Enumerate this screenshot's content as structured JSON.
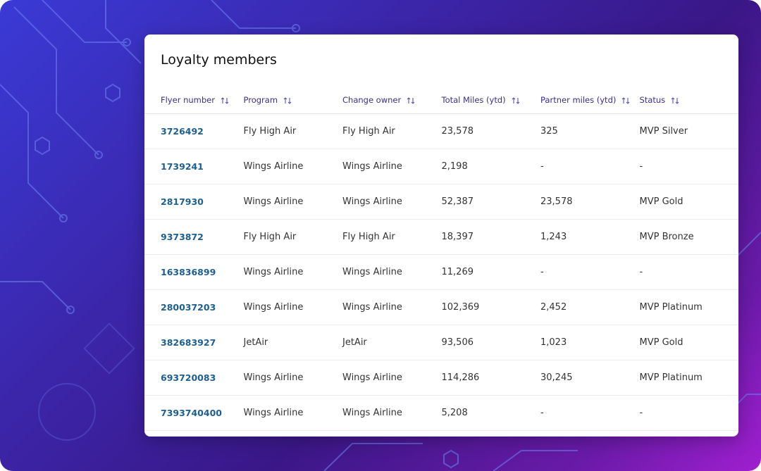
{
  "title": "Loyalty members",
  "table": {
    "headers": [
      "Flyer number",
      "Program",
      "Change owner",
      "Total Miles (ytd)",
      "Partner miles (ytd)",
      "Status"
    ],
    "rows": [
      [
        "3726492",
        "Fly High Air",
        "Fly High Air",
        "23,578",
        "325",
        "MVP Silver"
      ],
      [
        "1739241",
        "Wings Airline",
        "Wings Airline",
        "2,198",
        "-",
        "-"
      ],
      [
        "2817930",
        "Wings Airline",
        "Wings Airline",
        "52,387",
        "23,578",
        "MVP Gold"
      ],
      [
        "9373872",
        "Fly High Air",
        "Fly High Air",
        "18,397",
        "1,243",
        "MVP Bronze"
      ],
      [
        "163836899",
        "Wings Airline",
        "Wings Airline",
        "11,269",
        "-",
        "-"
      ],
      [
        "280037203",
        "Wings Airline",
        "Wings Airline",
        "102,369",
        "2,452",
        "MVP Platinum"
      ],
      [
        "382683927",
        "JetAir",
        "JetAir",
        "93,506",
        "1,023",
        "MVP Gold"
      ],
      [
        "693720083",
        "Wings Airline",
        "Wings Airline",
        "114,286",
        "30,245",
        "MVP Platinum"
      ],
      [
        "7393740400",
        "Wings Airline",
        "Wings Airline",
        "5,208",
        "-",
        "-"
      ]
    ]
  }
}
